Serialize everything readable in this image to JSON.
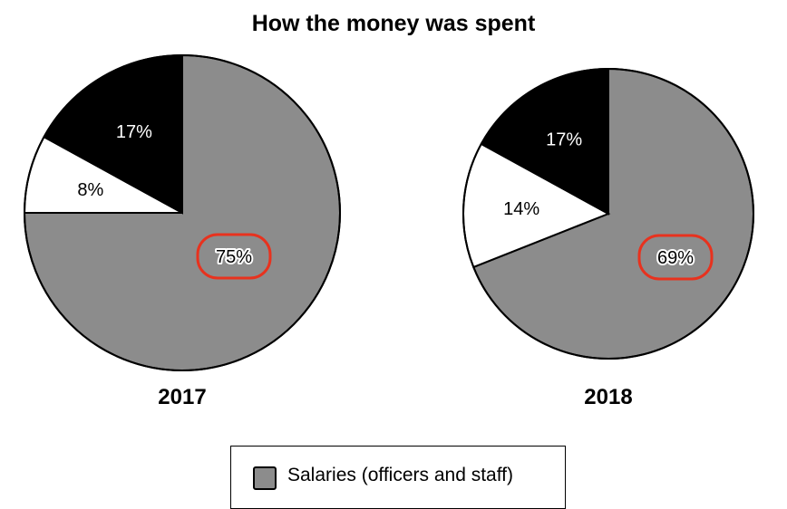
{
  "chart_data": [
    {
      "type": "pie",
      "title": "How the money was spent",
      "label": "2017",
      "slices": [
        {
          "label": "75%",
          "value": 75,
          "color": "#8c8c8c",
          "highlight": true
        },
        {
          "label": "8%",
          "value": 8,
          "color": "#ffffff"
        },
        {
          "label": "17%",
          "value": 17,
          "color": "#000000"
        }
      ]
    },
    {
      "type": "pie",
      "title": "How the money was spent",
      "label": "2018",
      "slices": [
        {
          "label": "69%",
          "value": 69,
          "color": "#8c8c8c",
          "highlight": true
        },
        {
          "label": "14%",
          "value": 14,
          "color": "#ffffff"
        },
        {
          "label": "17%",
          "value": 17,
          "color": "#000000"
        }
      ]
    }
  ],
  "title": "How the money was spent",
  "legend": {
    "entries": [
      {
        "label": "Salaries (officers and staff)",
        "color": "#8c8c8c"
      }
    ]
  },
  "highlight_color": "#e8321e"
}
